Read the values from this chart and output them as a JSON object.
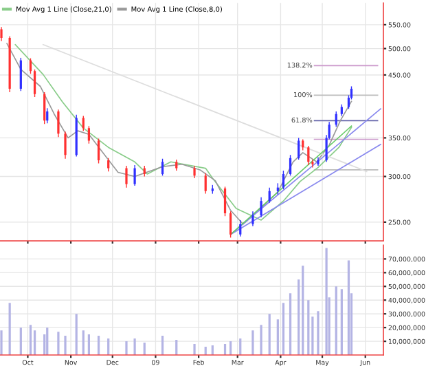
{
  "chart_data": [
    {
      "type": "candlestick",
      "log": "y",
      "grid": true,
      "tick_labels": "y",
      "legend": "top left",
      "x": [
        "2008-09-12",
        "2008-09-18",
        "2008-09-26",
        "2008-10-03",
        "2008-10-06",
        "2008-10-13",
        "2008-10-15",
        "2008-10-23",
        "2008-10-28",
        "2008-11-05",
        "2008-11-10",
        "2008-11-14",
        "2008-11-21",
        "2008-11-28",
        "2008-12-11",
        "2008-12-17",
        "2008-12-24",
        "2009-01-06",
        "2009-01-16",
        "2009-01-29",
        "2009-02-06",
        "2009-02-11",
        "2009-02-20",
        "2009-02-24",
        "2009-03-03",
        "2009-03-12",
        "2009-03-18",
        "2009-03-24",
        "2009-03-30",
        "2009-04-03",
        "2009-04-08",
        "2009-04-14",
        "2009-04-17",
        "2009-04-21",
        "2009-04-24",
        "2009-04-28",
        "2009-05-04",
        "2009-05-06",
        "2009-05-11",
        "2009-05-15",
        "2009-05-20",
        "2009-05-22"
      ],
      "ohlc": [
        [
          540,
          545,
          515,
          522
        ],
        [
          522,
          525,
          420,
          426
        ],
        [
          426,
          482,
          422,
          477
        ],
        [
          477,
          481,
          452,
          457
        ],
        [
          457,
          460,
          412,
          417
        ],
        [
          417,
          420,
          370,
          375
        ],
        [
          375,
          394,
          371,
          389
        ],
        [
          389,
          392,
          351,
          356
        ],
        [
          356,
          359,
          322,
          327
        ],
        [
          327,
          384,
          325,
          379
        ],
        [
          379,
          382,
          360,
          364
        ],
        [
          364,
          367,
          342,
          346
        ],
        [
          346,
          349,
          316,
          320
        ],
        [
          320,
          323,
          306,
          310
        ],
        [
          310,
          313,
          287,
          291
        ],
        [
          291,
          314,
          289,
          310
        ],
        [
          310,
          313,
          300,
          303
        ],
        [
          303,
          322,
          301,
          318
        ],
        [
          318,
          321,
          307,
          310
        ],
        [
          310,
          313,
          298,
          301
        ],
        [
          301,
          304,
          280,
          283
        ],
        [
          283,
          290,
          280,
          286
        ],
        [
          286,
          288,
          256,
          259
        ],
        [
          259,
          261,
          235,
          238
        ],
        [
          238,
          252,
          236,
          248
        ],
        [
          248,
          261,
          246,
          257
        ],
        [
          257,
          276,
          255,
          272
        ],
        [
          272,
          287,
          270,
          283
        ],
        [
          283,
          292,
          279,
          287
        ],
        [
          287,
          307,
          285,
          303
        ],
        [
          303,
          327,
          301,
          323
        ],
        [
          323,
          350,
          321,
          346
        ],
        [
          346,
          348,
          333,
          337
        ],
        [
          337,
          339,
          314,
          318
        ],
        [
          318,
          321,
          311,
          315
        ],
        [
          315,
          324,
          313,
          320
        ],
        [
          320,
          354,
          318,
          350
        ],
        [
          350,
          373,
          348,
          369
        ],
        [
          369,
          389,
          366,
          385
        ],
        [
          385,
          400,
          382,
          396
        ],
        [
          396,
          415,
          393,
          411
        ],
        [
          411,
          430,
          408,
          426
        ]
      ],
      "colors": [
        "#ff3030",
        "#ff3030",
        "#3030ff",
        "#ff3030",
        "#ff3030",
        "#ff3030",
        "#3030ff",
        "#ff3030",
        "#ff3030",
        "#3030ff",
        "#ff3030",
        "#ff3030",
        "#ff3030",
        "#ff3030",
        "#ff3030",
        "#3030ff",
        "#ff3030",
        "#3030ff",
        "#ff3030",
        "#ff3030",
        "#ff3030",
        "#3030ff",
        "#ff3030",
        "#ff3030",
        "#3030ff",
        "#3030ff",
        "#3030ff",
        "#3030ff",
        "#3030ff",
        "#3030ff",
        "#3030ff",
        "#3030ff",
        "#ff3030",
        "#ff3030",
        "#ff3030",
        "#3030ff",
        "#3030ff",
        "#3030ff",
        "#3030ff",
        "#3030ff",
        "#3030ff",
        "#3030ff"
      ],
      "series": [
        {
          "type": "line",
          "name": "Mov Avg 1 Line (Close,21,0)",
          "color": "#88cc88",
          "x": [
            "2008-09-22",
            "2008-10-12",
            "2008-10-26",
            "2008-11-10",
            "2008-11-28",
            "2008-12-17",
            "2008-12-26",
            "2009-01-12",
            "2009-02-06",
            "2009-02-11",
            "2009-02-28",
            "2009-03-18",
            "2009-04-03",
            "2009-04-15",
            "2009-04-28",
            "2009-05-13",
            "2009-05-22"
          ],
          "values": [
            508,
            451,
            404,
            364,
            337,
            318,
            303,
            318,
            310,
            298,
            264,
            252,
            272,
            294,
            311,
            337,
            365
          ]
        },
        {
          "type": "line",
          "name": "Mov Avg 1 Line (Close,8,0)",
          "color": "#999999",
          "x": [
            "2008-09-16",
            "2008-09-26",
            "2008-10-10",
            "2008-10-20",
            "2008-10-30",
            "2008-11-06",
            "2008-11-14",
            "2008-11-24",
            "2008-12-05",
            "2008-12-17",
            "2009-01-06",
            "2009-01-20",
            "2009-02-02",
            "2009-02-13",
            "2009-02-24",
            "2009-03-05",
            "2009-03-16",
            "2009-03-30",
            "2009-04-10",
            "2009-04-17",
            "2009-04-27",
            "2009-05-06",
            "2009-05-14",
            "2009-05-22"
          ],
          "values": [
            510,
            460,
            430,
            385,
            350,
            360,
            355,
            330,
            305,
            300,
            312,
            315,
            308,
            295,
            262,
            248,
            262,
            282,
            318,
            330,
            318,
            340,
            375,
            405
          ]
        },
        {
          "type": "line",
          "color": "#dddddd",
          "x": [
            "2008-10-12",
            "2009-06-02"
          ],
          "values": [
            508,
            306
          ]
        },
        {
          "type": "line",
          "color": "#8888ee",
          "x": [
            "2009-02-24",
            "2009-06-12"
          ],
          "values": [
            238,
            393
          ]
        },
        {
          "type": "line",
          "color": "#8888ee",
          "x": [
            "2009-02-24",
            "2009-06-12"
          ],
          "values": [
            238,
            341
          ]
        },
        {
          "type": "line",
          "color": "#66cc66",
          "x": [
            "2009-02-24",
            "2009-05-22"
          ],
          "values": [
            238,
            367
          ]
        }
      ],
      "annotations": [
        "138.2%",
        "100%",
        "61.8%"
      ],
      "ref_lines": [
        {
          "axis": "y",
          "value": 467,
          "color": "#cc99cc"
        },
        {
          "axis": "y",
          "value": 415,
          "color": "#bbbbbb"
        },
        {
          "axis": "y",
          "value": 375,
          "color": "#6666aa"
        },
        {
          "axis": "y",
          "value": 348,
          "color": "#cc99cc"
        },
        {
          "axis": "y",
          "value": 308,
          "color": "#bbbbbb"
        }
      ],
      "xlim": [
        "2008-09-11",
        "2009-06-14"
      ],
      "xticks": [
        {
          "value": "2008-10-01",
          "label": null
        },
        {
          "value": "2008-11-01",
          "label": null
        },
        {
          "value": "2008-12-01",
          "label": null
        },
        {
          "value": "2009-01-01",
          "label": null
        },
        {
          "value": "2009-02-01",
          "label": null
        },
        {
          "value": "2009-03-01",
          "label": null
        },
        {
          "value": "2009-04-01",
          "label": null
        },
        {
          "value": "2009-05-01",
          "label": null
        },
        {
          "value": "2009-06-01",
          "label": null
        }
      ],
      "ylim": [
        232,
        600
      ],
      "yticks": [
        {
          "value": 250,
          "label": "250.00"
        },
        {
          "value": 300,
          "label": "300.00"
        },
        {
          "value": 350,
          "label": "350.00"
        },
        {
          "value": 450,
          "label": "450.00"
        },
        {
          "value": 500,
          "label": "500.00"
        },
        {
          "value": 550,
          "label": "550.00"
        }
      ]
    },
    {
      "type": "bar",
      "grid": true,
      "color": "#b4b4e4",
      "x": [
        "2008-09-12",
        "2008-09-18",
        "2008-09-26",
        "2008-10-03",
        "2008-10-06",
        "2008-10-13",
        "2008-10-15",
        "2008-10-23",
        "2008-10-28",
        "2008-11-05",
        "2008-11-10",
        "2008-11-14",
        "2008-11-21",
        "2008-11-28",
        "2008-12-11",
        "2008-12-17",
        "2008-12-24",
        "2009-01-06",
        "2009-01-16",
        "2009-01-29",
        "2009-02-06",
        "2009-02-11",
        "2009-02-20",
        "2009-02-24",
        "2009-03-03",
        "2009-03-12",
        "2009-03-18",
        "2009-03-24",
        "2009-03-30",
        "2009-04-03",
        "2009-04-08",
        "2009-04-14",
        "2009-04-17",
        "2009-04-21",
        "2009-04-24",
        "2009-04-28",
        "2009-05-04",
        "2009-05-06",
        "2009-05-11",
        "2009-05-15",
        "2009-05-20",
        "2009-05-22"
      ],
      "values": [
        18000000,
        38000000,
        20000000,
        22000000,
        18000000,
        15000000,
        20000000,
        17000000,
        14000000,
        30000000,
        18000000,
        15000000,
        14000000,
        12000000,
        10000000,
        12000000,
        9000000,
        14000000,
        11000000,
        8000000,
        6000000,
        7000000,
        8000000,
        10000000,
        12000000,
        18000000,
        22000000,
        30000000,
        26000000,
        38000000,
        45000000,
        55000000,
        65000000,
        40000000,
        28000000,
        32000000,
        78000000,
        42000000,
        50000000,
        48000000,
        69000000,
        45000000
      ],
      "xlim": [
        "2008-09-11",
        "2009-06-14"
      ],
      "xticks": [
        {
          "value": "2008-10-01",
          "label": "Oct"
        },
        {
          "value": "2008-11-01",
          "label": "Nov"
        },
        {
          "value": "2008-12-01",
          "label": "Dec"
        },
        {
          "value": "2009-01-01",
          "label": "09"
        },
        {
          "value": "2009-02-01",
          "label": "Feb"
        },
        {
          "value": "2009-03-01",
          "label": "Mar"
        },
        {
          "value": "2009-04-01",
          "label": "Apr"
        },
        {
          "value": "2009-05-01",
          "label": "May"
        },
        {
          "value": "2009-06-01",
          "label": "Jun"
        }
      ],
      "ylim": [
        0,
        80000000
      ],
      "yticks": [
        {
          "value": 10000000,
          "label": "10,000,000"
        },
        {
          "value": 20000000,
          "label": "20,000,000"
        },
        {
          "value": 30000000,
          "label": "30,000,000"
        },
        {
          "value": 40000000,
          "label": "40,000,000"
        },
        {
          "value": 50000000,
          "label": "50,000,000"
        },
        {
          "value": 60000000,
          "label": "60,000,000"
        },
        {
          "value": 70000000,
          "label": "70,000,000"
        }
      ]
    }
  ]
}
